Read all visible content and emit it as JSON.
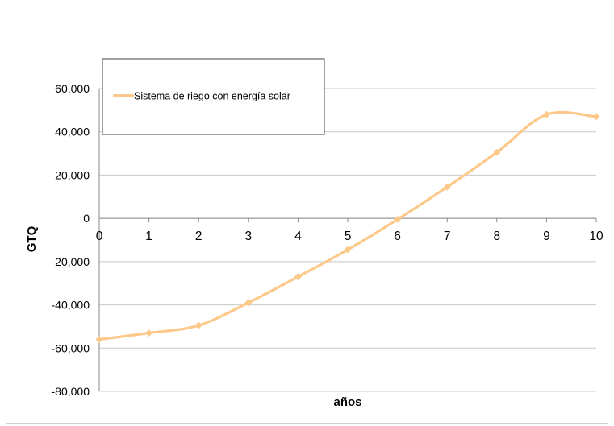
{
  "chart_data": {
    "type": "line",
    "title": "",
    "xlabel": "años",
    "ylabel": "GTQ",
    "x": [
      0,
      1,
      2,
      3,
      4,
      5,
      6,
      7,
      8,
      9,
      10
    ],
    "series": [
      {
        "name": "Sistema de riego con energía solar",
        "values": [
          -56000,
          -53000,
          -49500,
          -39000,
          -27000,
          -14500,
          -500,
          14500,
          30500,
          48000,
          47000
        ]
      }
    ],
    "xlim": [
      0,
      10
    ],
    "ylim": [
      -80000,
      60000
    ],
    "yticks": [
      60000,
      40000,
      20000,
      0,
      -20000,
      -40000,
      -60000,
      -80000
    ],
    "ytick_labels": [
      "60,000",
      "40,000",
      "20,000",
      "0",
      "-20,000",
      "-40,000",
      "-60,000",
      "-80,000"
    ],
    "xtick_labels": [
      "0",
      "1",
      "2",
      "3",
      "4",
      "5",
      "6",
      "7",
      "8",
      "9",
      "10"
    ],
    "grid": "horizontal",
    "legend_position": "top-left",
    "series_color": "#fcc98a",
    "grid_color": "#c8c8c8"
  }
}
